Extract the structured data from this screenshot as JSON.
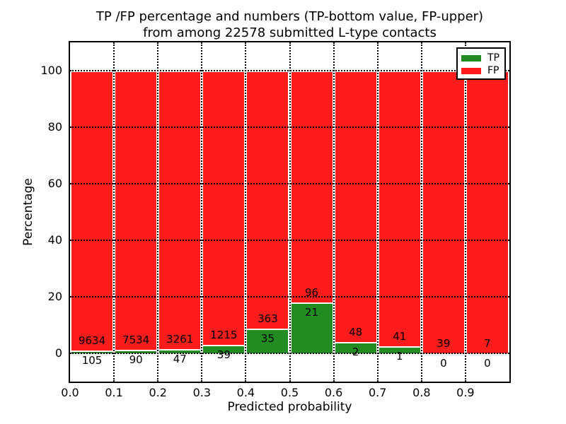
{
  "figure": {
    "title_line1": "TP /FP percentage and numbers (TP-bottom value, FP-upper)",
    "title_line2": "from among 22578 submitted L-type contacts",
    "xlabel": "Predicted probability",
    "ylabel": "Percentage"
  },
  "legend": {
    "position": "upper right",
    "items": [
      {
        "label": "TP",
        "color": "#228B22"
      },
      {
        "label": "FP",
        "color": "#FC1C1C"
      }
    ]
  },
  "chart_data": {
    "type": "bar",
    "stacked": true,
    "normalized_to_percent": true,
    "title": "TP /FP percentage and numbers (TP-bottom value, FP-upper) from among 22578 submitted L-type contacts",
    "xlabel": "Predicted probability",
    "ylabel": "Percentage",
    "xlim": [
      0.0,
      1.0
    ],
    "ylim": [
      -10,
      110
    ],
    "grid": true,
    "bin_width": 0.1,
    "bin_starts": [
      0.0,
      0.1,
      0.2,
      0.3,
      0.4,
      0.5,
      0.6,
      0.7,
      0.8,
      0.9
    ],
    "xticks": [
      "0.0",
      "0.1",
      "0.2",
      "0.3",
      "0.4",
      "0.5",
      "0.6",
      "0.7",
      "0.8",
      "0.9"
    ],
    "yticks": [
      0,
      20,
      40,
      60,
      80,
      100
    ],
    "total_contacts": 22578,
    "series": [
      {
        "name": "TP",
        "color": "#228B22",
        "counts": [
          105,
          90,
          47,
          39,
          35,
          21,
          2,
          1,
          0,
          0
        ]
      },
      {
        "name": "FP",
        "color": "#FC1C1C",
        "counts": [
          9634,
          7534,
          3261,
          1215,
          363,
          96,
          48,
          41,
          39,
          7
        ]
      }
    ],
    "tp_percent_of_bin": [
      1.08,
      1.18,
      1.42,
      3.11,
      8.79,
      17.95,
      4.0,
      2.38,
      0.0,
      0.0
    ],
    "bar_edge_color": "#FFFFFF"
  }
}
